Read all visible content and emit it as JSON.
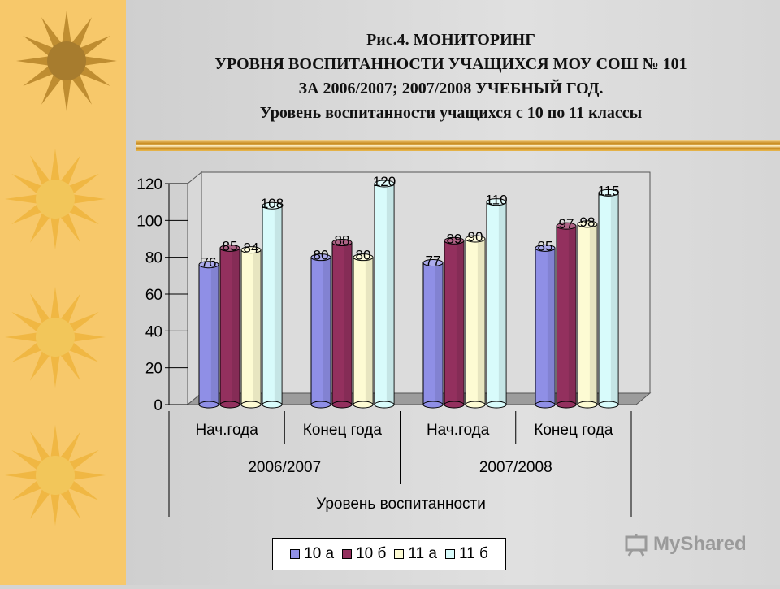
{
  "header": {
    "title_lines": [
      "Рис.4. МОНИТОРИНГ",
      "УРОВНЯ ВОСПИТАННОСТИ УЧАЩИХСЯ МОУ СОШ № 101",
      "ЗА 2006/2007;  2007/2008 УЧЕБНЫЙ ГОД.",
      "Уровень воспитанности учащихся с 10 по 11 классы"
    ]
  },
  "watermark": {
    "text": "MyShared"
  },
  "chart_data": {
    "type": "bar",
    "title": "Рис.4. МОНИТОРИНГ УРОВНЯ ВОСПИТАННОСТИ УЧАЩИХСЯ МОУ СОШ № 101 ЗА 2006/2007; 2007/2008 УЧЕБНЫЙ ГОД.",
    "subtitle": "Уровень воспитанности учащихся с 10 по 11 классы",
    "categories": [
      "Нач.года",
      "Конец года",
      "Нач.года",
      "Конец года"
    ],
    "category_groups": [
      {
        "label": "2006/2007",
        "span": [
          0,
          1
        ]
      },
      {
        "label": "2007/2008",
        "span": [
          2,
          3
        ]
      }
    ],
    "xlabel": "Уровень воспитанности",
    "ylabel": "",
    "ylim": [
      0,
      120
    ],
    "yticks": [
      0,
      20,
      40,
      60,
      80,
      100,
      120
    ],
    "series": [
      {
        "name": "10 а",
        "color": "#8f8fe6",
        "values": [
          76,
          80,
          77,
          85
        ]
      },
      {
        "name": "10 б",
        "color": "#93305e",
        "values": [
          85,
          88,
          89,
          97
        ]
      },
      {
        "name": "11 а",
        "color": "#fdfbd3",
        "values": [
          84,
          80,
          90,
          98
        ]
      },
      {
        "name": "11 б",
        "color": "#d8fbfb",
        "values": [
          108,
          120,
          110,
          115
        ]
      }
    ],
    "legend": "bottom",
    "grid": false
  }
}
